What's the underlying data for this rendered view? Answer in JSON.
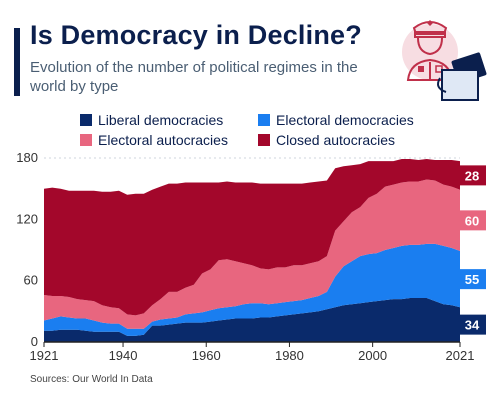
{
  "title": "Is Democracy in Decline?",
  "subtitle": "Evolution of the number of political regimes in the world by type",
  "source": "Sources: Our World In Data",
  "chart_data": {
    "type": "area",
    "stacked": true,
    "x": [
      1921,
      1923,
      1925,
      1927,
      1929,
      1931,
      1933,
      1935,
      1937,
      1939,
      1941,
      1943,
      1945,
      1947,
      1949,
      1951,
      1953,
      1955,
      1957,
      1959,
      1961,
      1963,
      1965,
      1967,
      1969,
      1971,
      1973,
      1975,
      1977,
      1979,
      1981,
      1983,
      1985,
      1987,
      1989,
      1991,
      1993,
      1995,
      1997,
      1999,
      2001,
      2003,
      2005,
      2007,
      2009,
      2011,
      2013,
      2015,
      2017,
      2019,
      2021
    ],
    "series": [
      {
        "name": "Liberal democracies",
        "color": "#0a2a6b",
        "values": [
          11,
          11,
          12,
          12,
          12,
          11,
          10,
          10,
          10,
          10,
          6,
          6,
          7,
          16,
          16,
          17,
          18,
          19,
          19,
          19,
          20,
          21,
          22,
          23,
          23,
          23,
          24,
          24,
          25,
          26,
          27,
          28,
          29,
          30,
          32,
          34,
          36,
          37,
          38,
          39,
          40,
          41,
          42,
          42,
          43,
          43,
          43,
          40,
          37,
          36,
          34
        ]
      },
      {
        "name": "Electoral democracies",
        "color": "#1a7ef0",
        "values": [
          10,
          12,
          13,
          12,
          11,
          12,
          11,
          9,
          8,
          8,
          7,
          7,
          6,
          4,
          6,
          6,
          6,
          8,
          9,
          10,
          11,
          12,
          12,
          12,
          14,
          15,
          14,
          13,
          13,
          13,
          13,
          13,
          14,
          15,
          17,
          30,
          38,
          42,
          46,
          47,
          47,
          49,
          50,
          52,
          52,
          52,
          53,
          56,
          57,
          56,
          55
        ]
      },
      {
        "name": "Electoral autocracies",
        "color": "#e8667f",
        "values": [
          25,
          22,
          20,
          20,
          19,
          18,
          19,
          17,
          16,
          15,
          14,
          13,
          15,
          16,
          20,
          26,
          25,
          26,
          28,
          38,
          40,
          47,
          47,
          44,
          40,
          37,
          34,
          34,
          35,
          34,
          35,
          34,
          34,
          34,
          35,
          45,
          44,
          48,
          48,
          55,
          58,
          62,
          62,
          62,
          62,
          62,
          63,
          62,
          60,
          60,
          60
        ]
      },
      {
        "name": "Closed autocracies",
        "color": "#a3072b",
        "values": [
          104,
          106,
          105,
          104,
          106,
          107,
          108,
          111,
          113,
          115,
          117,
          119,
          117,
          113,
          110,
          106,
          106,
          103,
          100,
          89,
          85,
          76,
          76,
          77,
          79,
          81,
          83,
          84,
          82,
          82,
          80,
          80,
          79,
          78,
          74,
          61,
          54,
          46,
          42,
          36,
          32,
          25,
          23,
          23,
          22,
          21,
          20,
          20,
          24,
          26,
          28
        ]
      }
    ],
    "end_labels": [
      {
        "series": "Liberal democracies",
        "label": "34"
      },
      {
        "series": "Electoral democracies",
        "label": "55"
      },
      {
        "series": "Electoral autocracies",
        "label": "60"
      },
      {
        "series": "Closed autocracies",
        "label": "28"
      }
    ],
    "x_ticks": [
      "1921",
      "1940",
      "1960",
      "1980",
      "2000",
      "2021"
    ],
    "x_tick_values": [
      1921,
      1940,
      1960,
      1980,
      2000,
      2021
    ],
    "y_ticks": [
      "0",
      "60",
      "120",
      "180"
    ],
    "y_tick_values": [
      0,
      60,
      120,
      180
    ],
    "xlim": [
      1921,
      2021
    ],
    "ylim": [
      0,
      180
    ],
    "grid": true,
    "legend_position": "top"
  }
}
